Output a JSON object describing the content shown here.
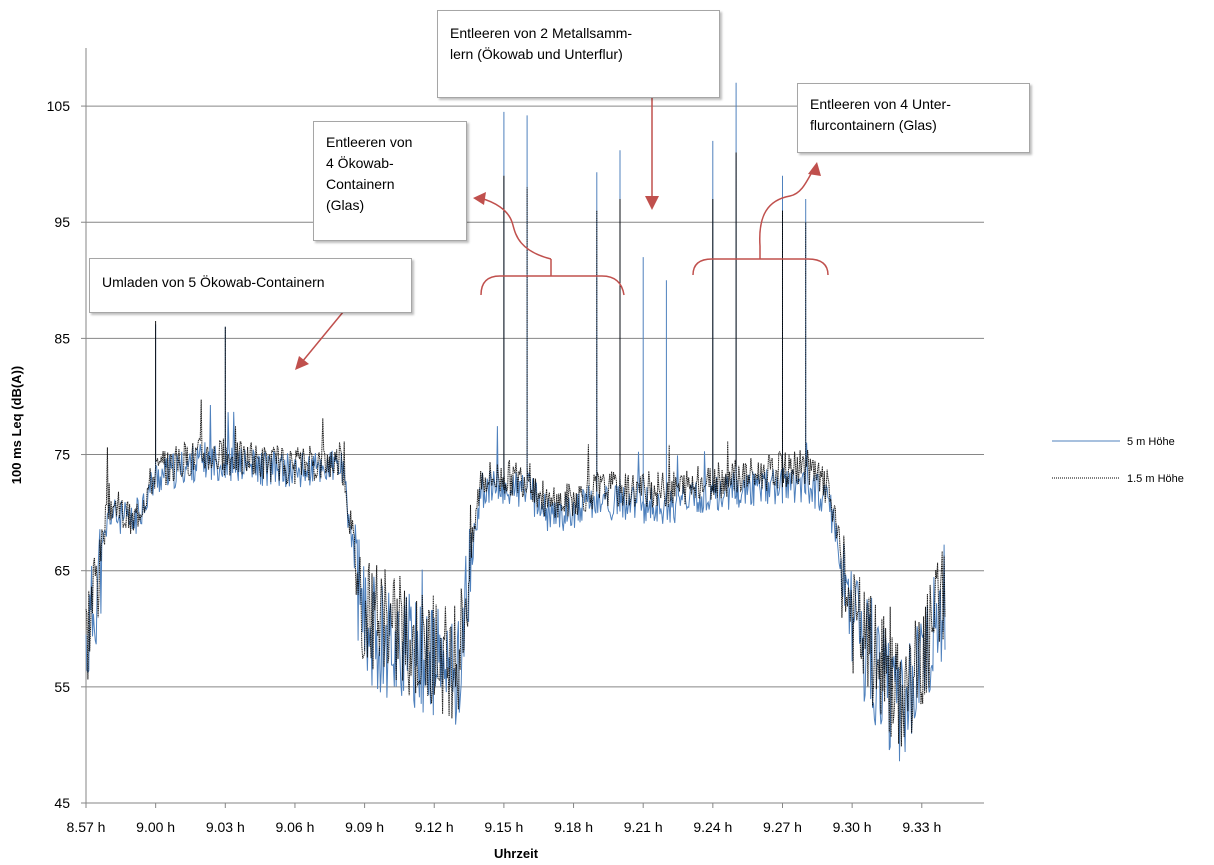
{
  "chart_data": {
    "type": "line",
    "xlabel": "Uhrzeit",
    "ylabel": "100 ms Leq (dB(A))",
    "ylim": [
      45,
      110
    ],
    "yticks": [
      45,
      55,
      65,
      75,
      85,
      95,
      105
    ],
    "xlim": [
      "8.57 h",
      "9.35 h"
    ],
    "xticks": [
      "8.57 h",
      "9.00 h",
      "9.03 h",
      "9.06 h",
      "9.09 h",
      "9.12 h",
      "9.15 h",
      "9.18 h",
      "9.21 h",
      "9.24 h",
      "9.27 h",
      "9.30 h",
      "9.33 h"
    ],
    "grid": "horizontal",
    "legend_position": "right",
    "series": [
      {
        "name": "5 m Höhe",
        "color": "#4f81bd",
        "style": "solid",
        "segments": [
          {
            "time": "8.57 h",
            "level": 58
          },
          {
            "time": "8.58 h",
            "level": 70
          },
          {
            "time": "8.59 h",
            "level": 69
          },
          {
            "time": "9.00 h",
            "level": 73
          },
          {
            "time": "9.02 h",
            "level": 74.5
          },
          {
            "time": "9.04 h",
            "level": 74
          },
          {
            "time": "9.06 h",
            "level": 73.5
          },
          {
            "time": "9.08 h",
            "level": 74
          },
          {
            "time": "9.09 h",
            "level": 60
          },
          {
            "time": "9.11 h",
            "level": 58
          },
          {
            "time": "9.13 h",
            "level": 56
          },
          {
            "time": "9.14 h",
            "level": 72
          },
          {
            "time": "9.16 h",
            "level": 72
          },
          {
            "time": "9.17 h",
            "level": 69.5
          },
          {
            "time": "9.19 h",
            "level": 71
          },
          {
            "time": "9.22 h",
            "level": 70.5
          },
          {
            "time": "9.25 h",
            "level": 72
          },
          {
            "time": "9.28 h",
            "level": 72.5
          },
          {
            "time": "9.29 h",
            "level": 71
          },
          {
            "time": "9.30 h",
            "level": 60
          },
          {
            "time": "9.32 h",
            "level": 53
          },
          {
            "time": "9.33 h",
            "level": 56
          },
          {
            "time": "9.34 h",
            "level": 63
          }
        ],
        "peaks": [
          {
            "time": "9.15 h",
            "level": 104.5
          },
          {
            "time": "9.16 h",
            "level": 104.2
          },
          {
            "time": "9.19 h",
            "level": 99.3
          },
          {
            "time": "9.20 h",
            "level": 101.2
          },
          {
            "time": "9.21 h",
            "level": 92
          },
          {
            "time": "9.22 h",
            "level": 90
          },
          {
            "time": "9.24 h",
            "level": 102
          },
          {
            "time": "9.25 h",
            "level": 107
          },
          {
            "time": "9.27 h",
            "level": 99
          },
          {
            "time": "9.28 h",
            "level": 97
          },
          {
            "time": "9.00 h",
            "level": 86.2
          },
          {
            "time": "9.03 h",
            "level": 86
          }
        ]
      },
      {
        "name": "1.5 m Höhe",
        "color": "#000000",
        "style": "dotted",
        "segments": [
          {
            "time": "8.57 h",
            "level": 59
          },
          {
            "time": "8.58 h",
            "level": 71
          },
          {
            "time": "8.59 h",
            "level": 69
          },
          {
            "time": "9.00 h",
            "level": 73.5
          },
          {
            "time": "9.02 h",
            "level": 75
          },
          {
            "time": "9.04 h",
            "level": 74.5
          },
          {
            "time": "9.06 h",
            "level": 74
          },
          {
            "time": "9.08 h",
            "level": 74.5
          },
          {
            "time": "9.09 h",
            "level": 61
          },
          {
            "time": "9.11 h",
            "level": 59
          },
          {
            "time": "9.13 h",
            "level": 57
          },
          {
            "time": "9.14 h",
            "level": 73
          },
          {
            "time": "9.16 h",
            "level": 73
          },
          {
            "time": "9.17 h",
            "level": 70.5
          },
          {
            "time": "9.19 h",
            "level": 72
          },
          {
            "time": "9.22 h",
            "level": 72
          },
          {
            "time": "9.25 h",
            "level": 73
          },
          {
            "time": "9.28 h",
            "level": 74
          },
          {
            "time": "9.29 h",
            "level": 72
          },
          {
            "time": "9.30 h",
            "level": 61
          },
          {
            "time": "9.32 h",
            "level": 54
          },
          {
            "time": "9.33 h",
            "level": 57
          },
          {
            "time": "9.34 h",
            "level": 64
          }
        ],
        "peaks": [
          {
            "time": "9.15 h",
            "level": 99
          },
          {
            "time": "9.16 h",
            "level": 98
          },
          {
            "time": "9.19 h",
            "level": 96
          },
          {
            "time": "9.20 h",
            "level": 97
          },
          {
            "time": "9.24 h",
            "level": 97
          },
          {
            "time": "9.25 h",
            "level": 101
          },
          {
            "time": "9.27 h",
            "level": 96
          },
          {
            "time": "9.28 h",
            "level": 95
          },
          {
            "time": "9.00 h",
            "level": 86.5
          },
          {
            "time": "9.03 h",
            "level": 86
          }
        ]
      }
    ],
    "annotations": [
      {
        "text": "Umladen von 5 Ökowab-Containern"
      },
      {
        "text": "Entleeren von\n4 Ökowab-\nContainern\n(Glas)"
      },
      {
        "text": "Entleeren von 2 Metallsamm-\nlern (Ökowab und Unterflur)"
      },
      {
        "text": "Entleeren von 4 Unter-\nflurcontainern (Glas)"
      }
    ],
    "accent_color": "#c0504d"
  }
}
